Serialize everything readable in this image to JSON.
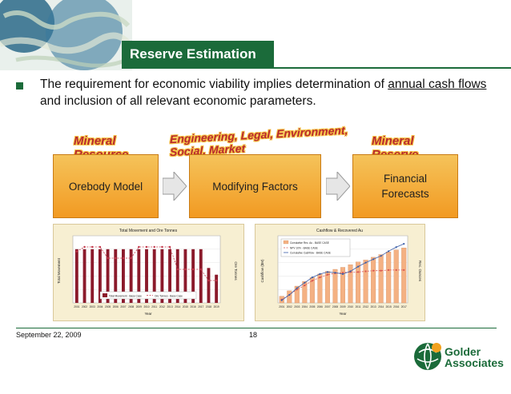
{
  "slide": {
    "title": "Reserve Estimation",
    "bullet_text_before": "The requirement for economic viability implies determination of ",
    "bullet_underlined": "annual cash flows",
    "bullet_text_after": " and inclusion of all relevant economic parameters."
  },
  "flow": {
    "labels": [
      "Mineral Resource",
      "Engineering, Legal, Environment, Social, Market",
      "Mineral Reserve"
    ],
    "boxes": [
      "Orebody Model",
      "Modifying Factors",
      "Financial Forecasts"
    ]
  },
  "colors": {
    "brand_green": "#1b6b3a",
    "box_orange": "#f29a22",
    "wordart_red": "#b8292f",
    "chart_bg": "#f7efd2"
  },
  "chart_data": [
    {
      "type": "bar",
      "title": "Total Movement and Ore Tonnes",
      "xlabel": "Year",
      "ylabel": "Total Movement",
      "y2label": "Ore Tonnes",
      "categories": [
        "2001",
        "2002",
        "2003",
        "2004",
        "2005",
        "2006",
        "2007",
        "2008",
        "2009",
        "2010",
        "2011",
        "2012",
        "2013",
        "2014",
        "2015",
        "2016",
        "2017",
        "2018",
        "2019"
      ],
      "series": [
        {
          "name": "Total Movement - Base Case",
          "kind": "bar",
          "values": [
            80,
            80,
            80,
            80,
            80,
            80,
            80,
            80,
            80,
            80,
            80,
            80,
            80,
            80,
            80,
            80,
            80,
            52,
            42
          ]
        },
        {
          "name": "Ore Tonnes - Base Case",
          "kind": "line",
          "values": [
            4.6,
            5.0,
            5.0,
            5.0,
            4.0,
            4.0,
            4.0,
            4.0,
            5.0,
            5.0,
            5.0,
            5.0,
            5.0,
            3.0,
            3.0,
            3.0,
            3.0,
            2.0,
            2.0
          ]
        }
      ],
      "ylim": [
        0,
        100
      ],
      "y2lim": [
        0,
        6
      ]
    },
    {
      "type": "bar",
      "title": "Cashflow & Recovered Au",
      "xlabel": "Year",
      "ylabel": "Cashflow ($M)",
      "y2label": "Rec. Ounces",
      "categories": [
        "2001",
        "2002",
        "2003",
        "2004",
        "2005",
        "2006",
        "2007",
        "2008",
        "2009",
        "2010",
        "2011",
        "2012",
        "2013",
        "2014",
        "2015",
        "2016",
        "2017"
      ],
      "series": [
        {
          "name": "Cumulative Rec. Au - BASE CASE",
          "kind": "bar",
          "values": [
            10,
            18,
            25,
            32,
            38,
            43,
            47,
            50,
            53,
            57,
            61,
            64,
            68,
            72,
            76,
            79,
            82
          ]
        },
        {
          "name": "NPV 10% - BASE CASE",
          "kind": "line",
          "values": [
            5,
            12,
            20,
            26,
            33,
            38,
            42,
            44,
            45,
            46,
            46,
            47,
            48,
            48,
            49,
            49,
            49
          ]
        },
        {
          "name": "Cumulative Cashflow - BASE CASE",
          "kind": "line",
          "values": [
            4,
            12,
            22,
            30,
            38,
            43,
            46,
            45,
            43,
            47,
            54,
            60,
            65,
            70,
            77,
            83,
            88
          ]
        }
      ],
      "ylim": [
        0,
        100
      ]
    }
  ]
}
